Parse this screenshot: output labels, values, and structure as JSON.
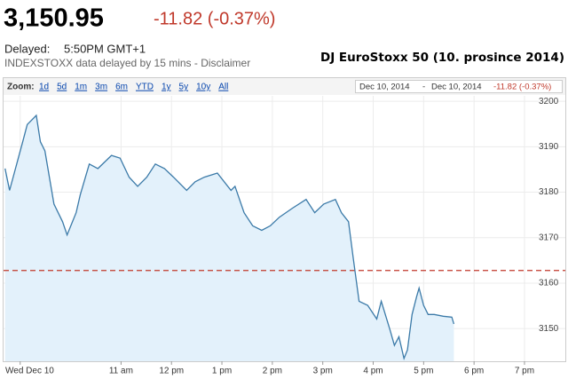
{
  "header": {
    "price": "3,150.95",
    "change": "-11.82 (-0.37%)",
    "delayed_label": "Delayed:",
    "delayed_time": "5:50PM GMT+1",
    "note": "INDEXSTOXX data delayed by 15 mins - Disclaimer",
    "annotation": "DJ EuroStoxx 50 (10. prosince 2014)"
  },
  "toolbar": {
    "zoom_label": "Zoom:",
    "zoom_options": [
      "1d",
      "5d",
      "1m",
      "3m",
      "6m",
      "YTD",
      "1y",
      "5y",
      "10y",
      "All"
    ],
    "range_start": "Dec 10, 2014",
    "range_separator": "-",
    "range_end": "Dec 10, 2014",
    "range_change": "-11.82 (-0.37%)"
  },
  "chart_data": {
    "type": "line",
    "x": [
      8.7,
      8.79,
      9.05,
      9.14,
      9.32,
      9.4,
      9.49,
      9.67,
      9.84,
      9.93,
      10.11,
      10.19,
      10.37,
      10.54,
      10.81,
      10.98,
      11.16,
      11.33,
      11.51,
      11.68,
      11.86,
      12.04,
      12.3,
      12.47,
      12.65,
      12.91,
      13.18,
      13.26,
      13.44,
      13.61,
      13.79,
      13.96,
      14.14,
      14.4,
      14.67,
      14.84,
      15.02,
      15.25,
      15.37,
      15.51,
      15.6,
      15.72,
      15.89,
      16.07,
      16.16,
      16.33,
      16.42,
      16.51,
      16.61,
      16.68,
      16.77,
      16.86,
      16.91,
      17.0,
      17.09,
      17.21,
      17.39,
      17.56,
      17.6
    ],
    "values": [
      3185.2,
      3180.4,
      3191.1,
      3194.9,
      3196.9,
      3191.1,
      3189.1,
      3177.4,
      3173.5,
      3170.6,
      3175.5,
      3179.4,
      3186.2,
      3185.2,
      3188.1,
      3187.5,
      3183.3,
      3181.3,
      3183.3,
      3186.2,
      3185.2,
      3183.3,
      3180.4,
      3182.3,
      3183.3,
      3184.2,
      3180.4,
      3181.3,
      3175.5,
      3172.6,
      3171.6,
      3172.6,
      3174.5,
      3176.5,
      3178.4,
      3175.5,
      3177.4,
      3178.4,
      3175.5,
      3173.5,
      3165.8,
      3156.0,
      3155.1,
      3152.1,
      3156.0,
      3149.8,
      3146.3,
      3148.2,
      3143.4,
      3145.3,
      3153.1,
      3157.0,
      3158.9,
      3155.1,
      3153.1,
      3153.1,
      3152.7,
      3152.5,
      3151.0
    ],
    "color": "#3b7aa8",
    "fill_color": "#e3f1fb",
    "reference_line": {
      "value": 3162.77,
      "color": "#c0392b",
      "style": "dashed"
    },
    "xlim": [
      8.67,
      19.81
    ],
    "ylim": [
      3142.8,
      3201.2
    ],
    "xticks": [
      {
        "value": 9,
        "label": "Wed Dec 10"
      },
      {
        "value": 11,
        "label": "11 am"
      },
      {
        "value": 12,
        "label": "12 pm"
      },
      {
        "value": 13,
        "label": "1 pm"
      },
      {
        "value": 14,
        "label": "2 pm"
      },
      {
        "value": 15,
        "label": "3 pm"
      },
      {
        "value": 16,
        "label": "4 pm"
      },
      {
        "value": 17,
        "label": "5 pm"
      },
      {
        "value": 18,
        "label": "6 pm"
      },
      {
        "value": 19,
        "label": "7 pm"
      }
    ],
    "yticks": [
      3150,
      3160,
      3170,
      3180,
      3190,
      3200
    ],
    "grid": true
  }
}
